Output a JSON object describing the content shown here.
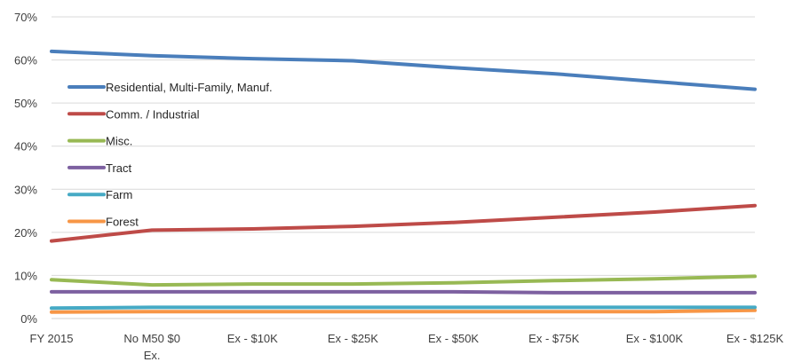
{
  "chart_data": {
    "type": "line",
    "categories": [
      "FY 2015",
      "No M50 $0 Ex.",
      "Ex - $10K",
      "Ex - $25K",
      "Ex - $50K",
      "Ex - $75K",
      "Ex - $100K",
      "Ex - $125K"
    ],
    "category_tick_labels": [
      [
        "FY 2015"
      ],
      [
        "No M50 $0",
        "Ex."
      ],
      [
        "Ex - $10K"
      ],
      [
        "Ex - $25K"
      ],
      [
        "Ex - $50K"
      ],
      [
        "Ex - $75K"
      ],
      [
        "Ex - $100K"
      ],
      [
        "Ex - $125K"
      ]
    ],
    "ylim": [
      0,
      70
    ],
    "yticks": [
      0,
      10,
      20,
      30,
      40,
      50,
      60,
      70
    ],
    "ytick_labels": [
      "0%",
      "10%",
      "20%",
      "30%",
      "40%",
      "50%",
      "60%",
      "70%"
    ],
    "grid": true,
    "legend_position": "left",
    "series": [
      {
        "name": "Residential, Multi-Family, Manuf.",
        "color": "#4a7ebb",
        "values": [
          62,
          61,
          60.3,
          59.8,
          58.2,
          56.8,
          55,
          53.2
        ]
      },
      {
        "name": "Comm. / Industrial",
        "color": "#be4b48",
        "values": [
          18,
          20.5,
          20.8,
          21.4,
          22.3,
          23.5,
          24.7,
          26.2
        ]
      },
      {
        "name": "Misc.",
        "color": "#98b954",
        "values": [
          9,
          7.8,
          8,
          8,
          8.3,
          8.8,
          9.2,
          9.8
        ]
      },
      {
        "name": "Tract",
        "color": "#7d60a0",
        "values": [
          6.2,
          6.2,
          6.2,
          6.2,
          6.2,
          6,
          6,
          6
        ]
      },
      {
        "name": "Farm",
        "color": "#46aac5",
        "values": [
          2.4,
          2.6,
          2.6,
          2.6,
          2.6,
          2.6,
          2.6,
          2.6
        ]
      },
      {
        "name": "Forest",
        "color": "#f79646",
        "values": [
          1.5,
          1.6,
          1.6,
          1.6,
          1.6,
          1.6,
          1.6,
          1.9
        ]
      }
    ]
  }
}
